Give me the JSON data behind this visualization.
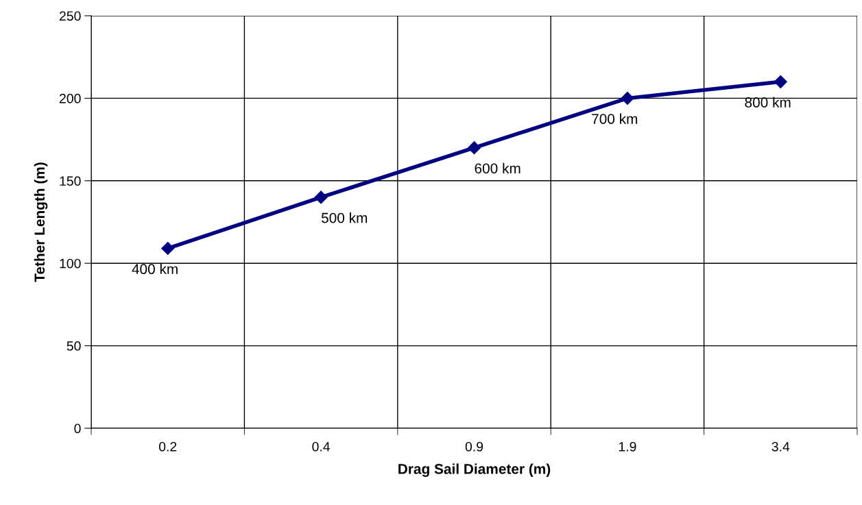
{
  "chart_data": {
    "type": "line",
    "xlabel": "Drag Sail Diameter (m)",
    "ylabel": "Tether Length (m)",
    "categories": [
      "0.2",
      "0.4",
      "0.9",
      "1.9",
      "3.4"
    ],
    "series": [
      {
        "color": "#000080",
        "values": [
          109,
          140,
          170,
          200,
          210
        ]
      }
    ],
    "ylim": [
      0,
      250
    ],
    "yticks": [
      0,
      50,
      100,
      150,
      200,
      250
    ],
    "grid": true,
    "marker": "diamond",
    "line_style": "solid",
    "annotations": [
      {
        "text": "400 km",
        "x": "0.2",
        "y": 109
      },
      {
        "text": "500 km",
        "x": "0.4",
        "y": 140
      },
      {
        "text": "600 km",
        "x": "0.9",
        "y": 170
      },
      {
        "text": "700 km",
        "x": "1.9",
        "y": 200
      },
      {
        "text": "800 km",
        "x": "3.4",
        "y": 210
      }
    ]
  }
}
